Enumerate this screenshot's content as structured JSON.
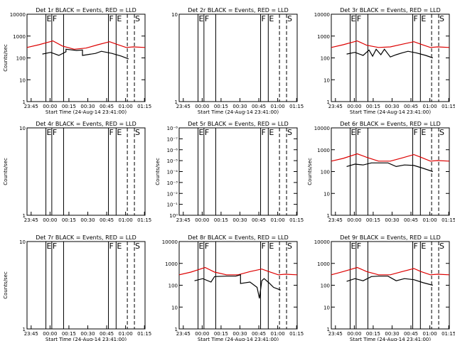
{
  "figure": {
    "background": "#ffffff",
    "colors": {
      "events": "#000000",
      "lld": "#dd0000",
      "axes": "#000000"
    }
  },
  "chart_data": [
    {
      "type": "line",
      "title": "Det 1r BLACK = Events, RED = LLD",
      "xlabel": "Start Time (24-Aug-14 23:41:00)",
      "ylabel": "Counts/sec",
      "yscale": "log",
      "ylim": [
        1,
        10000
      ],
      "ytick_labels": [
        "1",
        "10",
        "100",
        "1000",
        "10000"
      ],
      "xtick_labels": [
        "23:45",
        "00:00",
        "00:15",
        "00:30",
        "00:45",
        "01:00",
        "01:15"
      ],
      "markers": [
        {
          "t": 0.16,
          "label": "E",
          "style": "solid"
        },
        {
          "t": 0.21,
          "label": "F",
          "style": "solid"
        },
        {
          "t": 0.31,
          "label": "",
          "style": "solid"
        },
        {
          "t": 0.69,
          "label": "F",
          "style": "solid"
        },
        {
          "t": 0.755,
          "label": "E",
          "style": "solid"
        },
        {
          "t": 0.85,
          "label": "",
          "style": "dashed"
        },
        {
          "t": 0.91,
          "label": "S",
          "style": "dashed"
        }
      ],
      "series": [
        {
          "name": "LLD",
          "color": "#dd0000",
          "x": [
            0,
            0.1,
            0.22,
            0.3,
            0.4,
            0.5,
            0.6,
            0.7,
            0.76,
            0.84,
            0.9,
            1.0
          ],
          "y": [
            300,
            400,
            600,
            350,
            250,
            280,
            400,
            550,
            420,
            300,
            320,
            300
          ]
        },
        {
          "name": "Events",
          "color": "#000000",
          "x": [
            0.13,
            0.2,
            0.27,
            0.33,
            0.33,
            0.42,
            0.47,
            0.47,
            0.58,
            0.63,
            0.72,
            0.8,
            0.86
          ],
          "y": [
            150,
            180,
            130,
            190,
            250,
            220,
            230,
            130,
            160,
            200,
            160,
            120,
            90
          ]
        }
      ]
    },
    {
      "type": "line",
      "title": "Det 2r BLACK = Events, RED = LLD",
      "xlabel": "Start Time (24-Aug-14 23:41:00)",
      "ylabel": "",
      "yscale": "log",
      "ylim": [
        1,
        10
      ],
      "ytick_labels": [
        "1",
        "10"
      ],
      "xtick_labels": [
        "23:45",
        "00:00",
        "00:15",
        "00:30",
        "00:45",
        "01:00",
        "01:15"
      ],
      "markers": [
        {
          "t": 0.16,
          "label": "E",
          "style": "solid"
        },
        {
          "t": 0.21,
          "label": "F",
          "style": "solid"
        },
        {
          "t": 0.31,
          "label": "",
          "style": "solid"
        },
        {
          "t": 0.69,
          "label": "F",
          "style": "solid"
        },
        {
          "t": 0.755,
          "label": "E",
          "style": "solid"
        },
        {
          "t": 0.85,
          "label": "",
          "style": "dashed"
        },
        {
          "t": 0.91,
          "label": "S",
          "style": "dashed"
        }
      ],
      "series": []
    },
    {
      "type": "line",
      "title": "Det 3r BLACK = Events, RED = LLD",
      "xlabel": "Start Time (24-Aug-14 23:41:00)",
      "ylabel": "",
      "yscale": "log",
      "ylim": [
        1,
        10000
      ],
      "ytick_labels": [
        "1",
        "10",
        "100",
        "1000",
        "10000"
      ],
      "xtick_labels": [
        "23:45",
        "00:00",
        "00:15",
        "00:30",
        "00:45",
        "01:00",
        "01:15"
      ],
      "markers": [
        {
          "t": 0.16,
          "label": "E",
          "style": "solid"
        },
        {
          "t": 0.21,
          "label": "F",
          "style": "solid"
        },
        {
          "t": 0.31,
          "label": "",
          "style": "solid"
        },
        {
          "t": 0.69,
          "label": "F",
          "style": "solid"
        },
        {
          "t": 0.755,
          "label": "E",
          "style": "solid"
        },
        {
          "t": 0.85,
          "label": "",
          "style": "dashed"
        },
        {
          "t": 0.91,
          "label": "S",
          "style": "dashed"
        }
      ],
      "series": [
        {
          "name": "LLD",
          "color": "#dd0000",
          "x": [
            0,
            0.1,
            0.22,
            0.3,
            0.4,
            0.5,
            0.6,
            0.7,
            0.76,
            0.84,
            0.9,
            1.0
          ],
          "y": [
            300,
            400,
            600,
            380,
            300,
            320,
            420,
            550,
            420,
            300,
            320,
            300
          ]
        },
        {
          "name": "Events",
          "color": "#000000",
          "x": [
            0.13,
            0.2,
            0.27,
            0.32,
            0.35,
            0.38,
            0.42,
            0.45,
            0.5,
            0.55,
            0.6,
            0.65,
            0.72,
            0.8,
            0.86
          ],
          "y": [
            150,
            180,
            130,
            230,
            120,
            250,
            140,
            250,
            110,
            140,
            170,
            200,
            170,
            130,
            100
          ]
        }
      ]
    },
    {
      "type": "line",
      "title": "Det 4r BLACK = Events, RED = LLD",
      "xlabel": "",
      "ylabel": "Counts/sec",
      "yscale": "log",
      "ylim": [
        1,
        10
      ],
      "ytick_labels": [
        "1",
        "10"
      ],
      "xtick_labels": [
        "23:45",
        "00:00",
        "00:15",
        "00:30",
        "00:45",
        "01:00",
        "01:15"
      ],
      "markers": [
        {
          "t": 0.16,
          "label": "E",
          "style": "solid"
        },
        {
          "t": 0.21,
          "label": "F",
          "style": "solid"
        },
        {
          "t": 0.31,
          "label": "",
          "style": "solid"
        },
        {
          "t": 0.69,
          "label": "F",
          "style": "solid"
        },
        {
          "t": 0.755,
          "label": "E",
          "style": "solid"
        },
        {
          "t": 0.85,
          "label": "",
          "style": "dashed"
        },
        {
          "t": 0.91,
          "label": "S",
          "style": "dashed"
        }
      ],
      "series": []
    },
    {
      "type": "line",
      "title": "Det 5r BLACK = Events, RED = LLD",
      "xlabel": "",
      "ylabel": "Counts/sec",
      "yscale": "log",
      "ylim": [
        1,
        1e-08
      ],
      "ytick_labels": [
        "10⁰",
        "10⁻¹",
        "10⁻²",
        "10⁻³",
        "10⁻⁴",
        "10⁻⁵",
        "10⁻⁶",
        "10⁻⁷",
        "10⁻⁸"
      ],
      "xtick_labels": [
        "23:45",
        "00:00",
        "00:15",
        "00:30",
        "00:45",
        "01:00",
        "01:15"
      ],
      "markers": [
        {
          "t": 0.16,
          "label": "E",
          "style": "solid"
        },
        {
          "t": 0.21,
          "label": "F",
          "style": "solid"
        },
        {
          "t": 0.31,
          "label": "",
          "style": "solid"
        },
        {
          "t": 0.69,
          "label": "F",
          "style": "solid"
        },
        {
          "t": 0.755,
          "label": "E",
          "style": "solid"
        },
        {
          "t": 0.85,
          "label": "",
          "style": "dashed"
        },
        {
          "t": 0.91,
          "label": "S",
          "style": "dashed"
        }
      ],
      "series": []
    },
    {
      "type": "line",
      "title": "Det 6r BLACK = Events, RED = LLD",
      "xlabel": "",
      "ylabel": "Counts/sec",
      "yscale": "log",
      "ylim": [
        1,
        10000
      ],
      "ytick_labels": [
        "1",
        "10",
        "100",
        "1000",
        "10000"
      ],
      "xtick_labels": [
        "23:45",
        "00:00",
        "00:15",
        "00:30",
        "00:45",
        "01:00",
        "01:15"
      ],
      "markers": [
        {
          "t": 0.16,
          "label": "E",
          "style": "solid"
        },
        {
          "t": 0.21,
          "label": "F",
          "style": "solid"
        },
        {
          "t": 0.31,
          "label": "",
          "style": "solid"
        },
        {
          "t": 0.69,
          "label": "F",
          "style": "solid"
        },
        {
          "t": 0.755,
          "label": "E",
          "style": "solid"
        },
        {
          "t": 0.85,
          "label": "",
          "style": "dashed"
        },
        {
          "t": 0.91,
          "label": "S",
          "style": "dashed"
        }
      ],
      "series": [
        {
          "name": "LLD",
          "color": "#dd0000",
          "x": [
            0,
            0.1,
            0.22,
            0.3,
            0.4,
            0.5,
            0.6,
            0.7,
            0.76,
            0.84,
            0.9,
            1.0
          ],
          "y": [
            300,
            400,
            650,
            450,
            300,
            300,
            420,
            600,
            450,
            300,
            320,
            300
          ]
        },
        {
          "name": "Events",
          "color": "#000000",
          "x": [
            0.13,
            0.2,
            0.27,
            0.34,
            0.4,
            0.48,
            0.55,
            0.62,
            0.7,
            0.78,
            0.86
          ],
          "y": [
            170,
            220,
            200,
            250,
            250,
            250,
            170,
            200,
            190,
            140,
            100
          ]
        }
      ]
    },
    {
      "type": "line",
      "title": "Det 7r BLACK = Events, RED = LLD",
      "xlabel": "Start Time (24-Aug-14 23:41:00)",
      "ylabel": "Counts/sec",
      "yscale": "log",
      "ylim": [
        1,
        10
      ],
      "ytick_labels": [
        "1",
        "10"
      ],
      "xtick_labels": [
        "23:45",
        "00:00",
        "00:15",
        "00:30",
        "00:45",
        "01:00",
        "01:15"
      ],
      "markers": [
        {
          "t": 0.16,
          "label": "E",
          "style": "solid"
        },
        {
          "t": 0.21,
          "label": "F",
          "style": "solid"
        },
        {
          "t": 0.31,
          "label": "",
          "style": "solid"
        },
        {
          "t": 0.69,
          "label": "F",
          "style": "solid"
        },
        {
          "t": 0.755,
          "label": "E",
          "style": "solid"
        },
        {
          "t": 0.85,
          "label": "",
          "style": "dashed"
        },
        {
          "t": 0.91,
          "label": "S",
          "style": "dashed"
        }
      ],
      "series": []
    },
    {
      "type": "line",
      "title": "Det 8r BLACK = Events, RED = LLD",
      "xlabel": "Start Time (24-Aug-14 23:41:00)",
      "ylabel": "",
      "yscale": "log",
      "ylim": [
        1,
        10000
      ],
      "ytick_labels": [
        "1",
        "10",
        "100",
        "1000",
        "10000"
      ],
      "xtick_labels": [
        "23:45",
        "00:00",
        "00:15",
        "00:30",
        "00:45",
        "01:00",
        "01:15"
      ],
      "markers": [
        {
          "t": 0.16,
          "label": "E",
          "style": "solid"
        },
        {
          "t": 0.21,
          "label": "F",
          "style": "solid"
        },
        {
          "t": 0.31,
          "label": "",
          "style": "solid"
        },
        {
          "t": 0.69,
          "label": "F",
          "style": "solid"
        },
        {
          "t": 0.755,
          "label": "E",
          "style": "solid"
        },
        {
          "t": 0.85,
          "label": "",
          "style": "dashed"
        },
        {
          "t": 0.91,
          "label": "S",
          "style": "dashed"
        }
      ],
      "series": [
        {
          "name": "LLD",
          "color": "#dd0000",
          "x": [
            0,
            0.1,
            0.22,
            0.3,
            0.4,
            0.5,
            0.6,
            0.7,
            0.76,
            0.84,
            0.9,
            1.0
          ],
          "y": [
            300,
            400,
            650,
            400,
            300,
            300,
            420,
            550,
            420,
            300,
            320,
            300
          ]
        },
        {
          "name": "Events",
          "color": "#000000",
          "x": [
            0.13,
            0.2,
            0.27,
            0.3,
            0.4,
            0.48,
            0.52,
            0.52,
            0.6,
            0.66,
            0.68,
            0.7,
            0.72,
            0.76,
            0.8,
            0.86
          ],
          "y": [
            160,
            200,
            140,
            250,
            260,
            260,
            300,
            120,
            140,
            80,
            25,
            160,
            200,
            130,
            80,
            60
          ]
        }
      ]
    },
    {
      "type": "line",
      "title": "Det 9r BLACK = Events, RED = LLD",
      "xlabel": "Start Time (24-Aug-14 23:41:00)",
      "ylabel": "",
      "yscale": "log",
      "ylim": [
        1,
        10000
      ],
      "ytick_labels": [
        "1",
        "10",
        "100",
        "1000",
        "10000"
      ],
      "xtick_labels": [
        "23:45",
        "00:00",
        "00:15",
        "00:30",
        "00:45",
        "01:00",
        "01:15"
      ],
      "markers": [
        {
          "t": 0.16,
          "label": "E",
          "style": "solid"
        },
        {
          "t": 0.21,
          "label": "F",
          "style": "solid"
        },
        {
          "t": 0.31,
          "label": "",
          "style": "solid"
        },
        {
          "t": 0.69,
          "label": "F",
          "style": "solid"
        },
        {
          "t": 0.755,
          "label": "E",
          "style": "solid"
        },
        {
          "t": 0.85,
          "label": "",
          "style": "dashed"
        },
        {
          "t": 0.91,
          "label": "S",
          "style": "dashed"
        }
      ],
      "series": [
        {
          "name": "LLD",
          "color": "#dd0000",
          "x": [
            0,
            0.1,
            0.22,
            0.3,
            0.4,
            0.5,
            0.6,
            0.7,
            0.76,
            0.84,
            0.9,
            1.0
          ],
          "y": [
            300,
            420,
            650,
            420,
            300,
            300,
            420,
            580,
            420,
            300,
            320,
            300
          ]
        },
        {
          "name": "Events",
          "color": "#000000",
          "x": [
            0.13,
            0.2,
            0.27,
            0.34,
            0.4,
            0.48,
            0.55,
            0.62,
            0.7,
            0.78,
            0.86
          ],
          "y": [
            150,
            200,
            160,
            250,
            260,
            260,
            160,
            200,
            180,
            130,
            100
          ]
        }
      ]
    }
  ]
}
